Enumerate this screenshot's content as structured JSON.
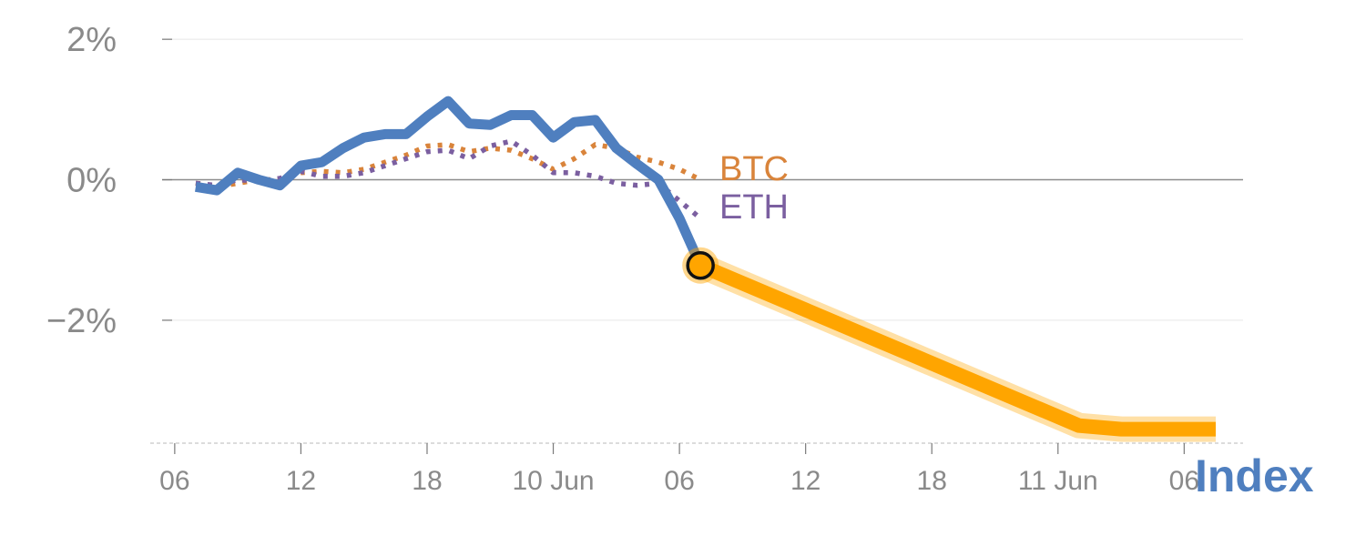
{
  "chart_data": {
    "type": "line",
    "y_tick_labels": [
      "2%",
      "0%",
      "−2%"
    ],
    "y_tick_values": [
      2,
      0,
      -2
    ],
    "ylim": [
      -3.75,
      2.3
    ],
    "x_tick_labels": [
      "06",
      "12",
      "18",
      "10 Jun",
      "06",
      "12",
      "18",
      "11 Jun",
      "06"
    ],
    "x_tick_positions": [
      0,
      6,
      12,
      18,
      24,
      30,
      36,
      42,
      48
    ],
    "xlim": [
      -0.6,
      50.8
    ],
    "grid": true,
    "series": [
      {
        "name": "Index",
        "role": "history",
        "color": "#4f7fbf",
        "x": [
          1,
          2,
          3,
          4,
          5,
          6,
          7,
          8,
          9,
          10,
          11,
          12,
          13,
          14,
          15,
          16,
          17,
          18,
          19,
          20,
          21,
          22,
          23,
          24,
          25
        ],
        "values": [
          -0.1,
          -0.15,
          0.1,
          0.0,
          -0.08,
          0.2,
          0.25,
          0.45,
          0.6,
          0.65,
          0.65,
          0.9,
          1.12,
          0.8,
          0.78,
          0.92,
          0.92,
          0.6,
          0.82,
          0.85,
          0.45,
          0.22,
          0.0,
          -0.55,
          -1.22
        ]
      },
      {
        "name": "BTC",
        "role": "comparison",
        "color": "#d9843b",
        "x": [
          1,
          2,
          3,
          4,
          5,
          6,
          7,
          8,
          9,
          10,
          11,
          12,
          13,
          14,
          15,
          16,
          17,
          18,
          19,
          20,
          21,
          22,
          23,
          24,
          25
        ],
        "values": [
          -0.05,
          -0.1,
          -0.05,
          0.0,
          0.0,
          0.1,
          0.12,
          0.1,
          0.15,
          0.25,
          0.35,
          0.48,
          0.5,
          0.4,
          0.45,
          0.42,
          0.3,
          0.15,
          0.3,
          0.5,
          0.45,
          0.32,
          0.25,
          0.15,
          0.0
        ]
      },
      {
        "name": "ETH",
        "role": "comparison",
        "color": "#7b5fa0",
        "x": [
          1,
          2,
          3,
          4,
          5,
          6,
          7,
          8,
          9,
          10,
          11,
          12,
          13,
          14,
          15,
          16,
          17,
          18,
          19,
          20,
          21,
          22,
          23,
          24,
          25
        ],
        "values": [
          -0.05,
          -0.08,
          0.0,
          -0.02,
          0.02,
          0.12,
          0.05,
          0.05,
          0.1,
          0.2,
          0.3,
          0.4,
          0.42,
          0.3,
          0.48,
          0.55,
          0.35,
          0.1,
          0.1,
          0.05,
          -0.05,
          -0.08,
          -0.05,
          -0.3,
          -0.55
        ]
      },
      {
        "name": "Index",
        "role": "projection",
        "color": "#ffa500",
        "x": [
          25,
          43,
          45,
          49.5
        ],
        "values": [
          -1.22,
          -3.5,
          -3.55,
          -3.55
        ]
      }
    ],
    "highlight_point": {
      "x": 25,
      "y": -1.22
    },
    "labels": {
      "btc": "BTC",
      "eth": "ETH",
      "index": "Index"
    }
  }
}
